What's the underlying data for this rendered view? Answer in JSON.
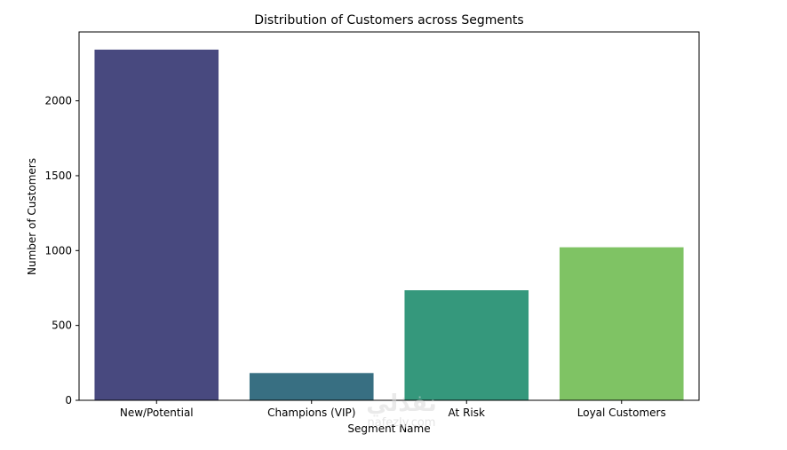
{
  "chart_data": {
    "type": "bar",
    "title": "Distribution of Customers across Segments",
    "xlabel": "Segment Name",
    "ylabel": "Number of Customers",
    "categories": [
      "New/Potential",
      "Champions (VIP)",
      "At Risk",
      "Loyal Customers"
    ],
    "values": [
      2342,
      182,
      735,
      1022
    ],
    "colors": [
      "#48497f",
      "#386f82",
      "#35987c",
      "#7fc364"
    ],
    "yticks": [
      0,
      500,
      1000,
      1500,
      2000
    ],
    "ylim": [
      0,
      2460
    ],
    "grid": false,
    "legend": "none"
  },
  "watermark": {
    "arabic_text": "نفذلي",
    "latin_text": "nafezly.com"
  }
}
